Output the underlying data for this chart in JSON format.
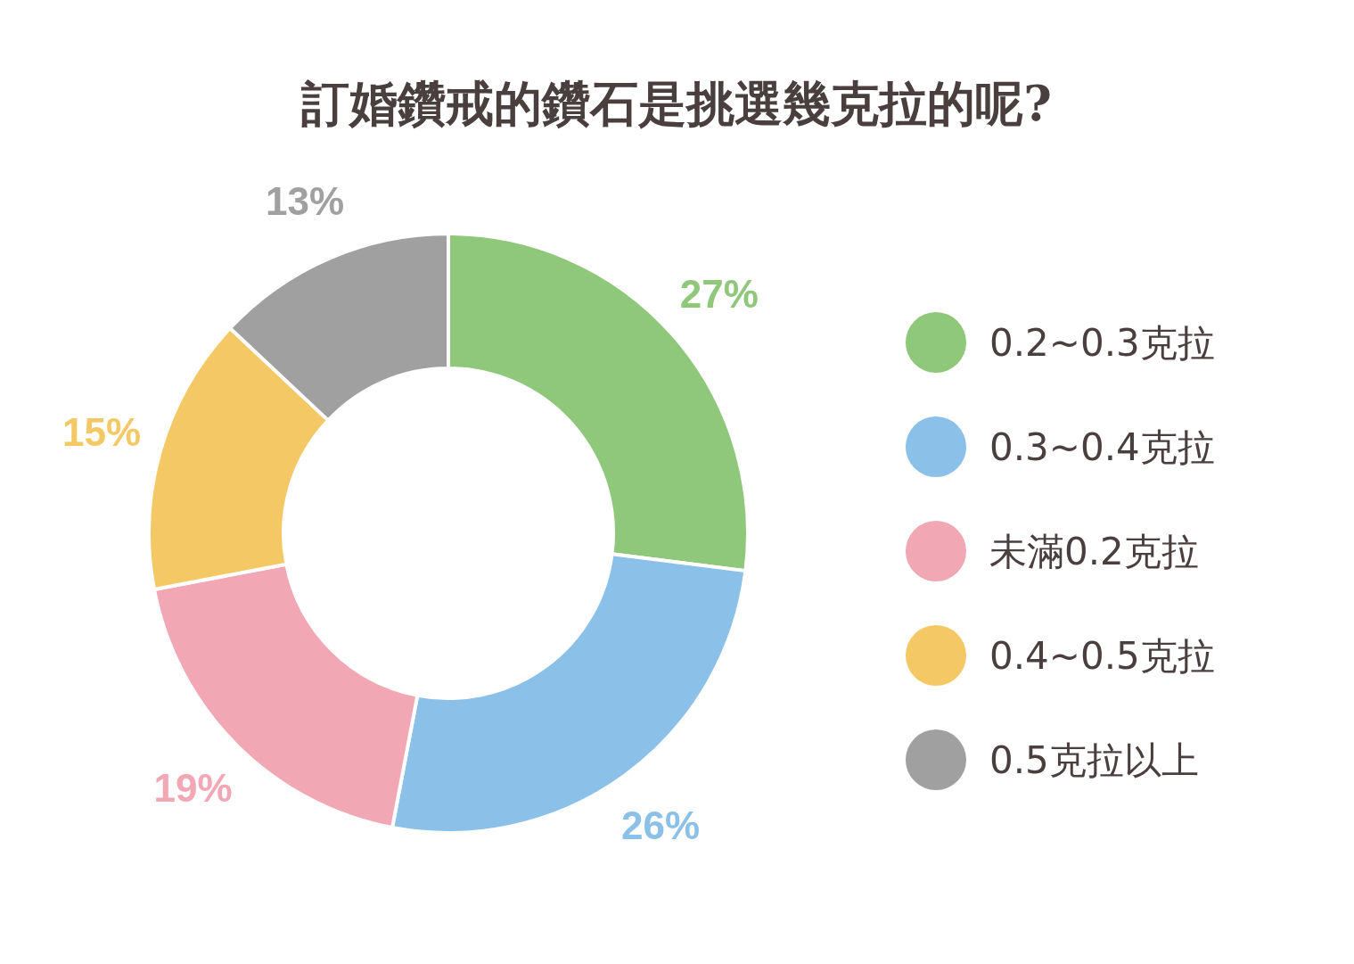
{
  "chart_data": {
    "type": "donut",
    "title": "訂婚鑽戒的鑽石是挑選幾克拉的呢?",
    "categories": [
      "0.2~0.3克拉",
      "0.3~0.4克拉",
      "未滿0.2克拉",
      "0.4~0.5克拉",
      "0.5克拉以上"
    ],
    "values": [
      27,
      26,
      19,
      15,
      13
    ],
    "colors": [
      "#8fc87a",
      "#8bc0e8",
      "#f2a7b4",
      "#f5c866",
      "#a0a0a0"
    ],
    "value_labels": [
      "27%",
      "26%",
      "19%",
      "15%",
      "13%"
    ],
    "legend": "right"
  }
}
